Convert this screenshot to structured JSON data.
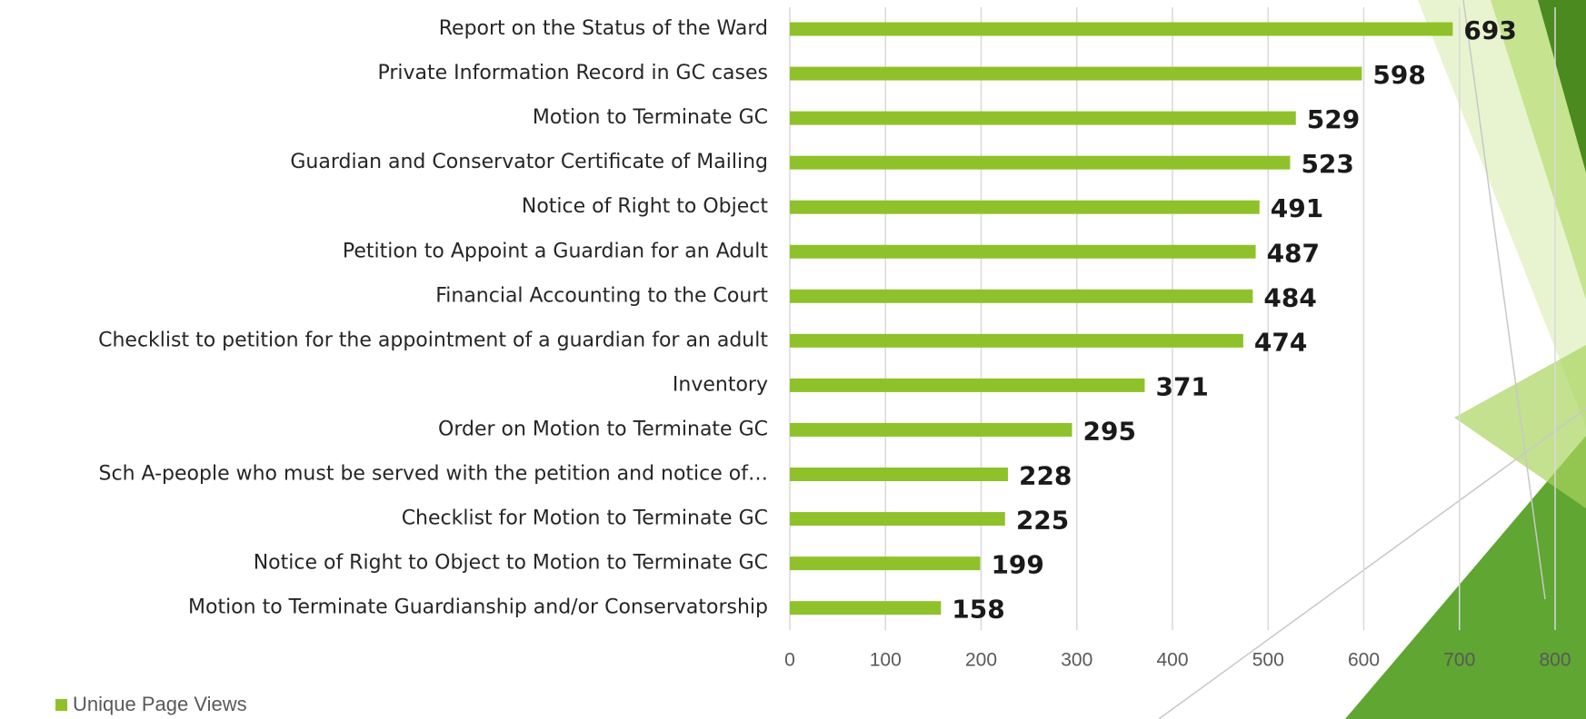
{
  "chart_data": {
    "type": "bar",
    "orientation": "horizontal",
    "categories": [
      "Report on the Status of the Ward",
      "Private Information Record in GC cases",
      "Motion to Terminate GC",
      "Guardian and Conservator Certificate of Mailing",
      "Notice of Right to Object",
      "Petition to Appoint a Guardian for an Adult",
      "Financial Accounting to the Court",
      "Checklist to petition for the appointment of a guardian for an adult",
      "Inventory",
      "Order on Motion to Terminate GC",
      "Sch A-people who must be served with the petition and notice of…",
      "Checklist for Motion to Terminate GC",
      "Notice of Right to Object to Motion to Terminate GC",
      "Motion to Terminate Guardianship and/or Conservatorship"
    ],
    "series": [
      {
        "name": "Unique Page Views",
        "color": "#8fc22a",
        "values": [
          693,
          598,
          529,
          523,
          491,
          487,
          484,
          474,
          371,
          295,
          228,
          225,
          199,
          158
        ]
      }
    ],
    "xlim": [
      0,
      800
    ],
    "xticks": [
      0,
      100,
      200,
      300,
      400,
      500,
      600,
      700,
      800
    ],
    "grid": true,
    "legend": "bottom-left"
  }
}
